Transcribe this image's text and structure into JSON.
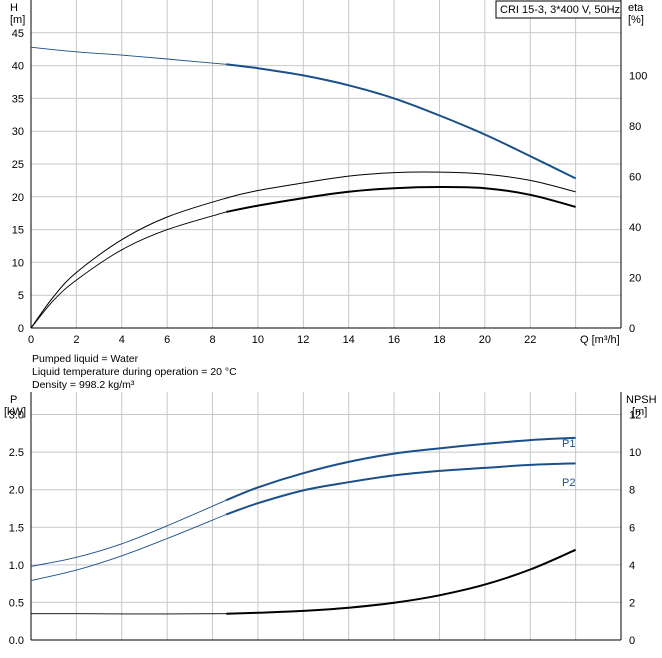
{
  "top_chart": {
    "pump_label": "CRI 15-3, 3*400 V, 50Hz",
    "y_left_title": "H",
    "y_left_unit": "[m]",
    "y_right_title": "eta",
    "y_right_unit": "[%]",
    "x_label": "Q [m³/h]"
  },
  "info": {
    "line1": "Pumped liquid = Water",
    "line2": "Liquid temperature during operation = 20 °C",
    "line3": "Density = 998.2 kg/m³"
  },
  "bottom_chart": {
    "y_left_title": "P",
    "y_left_unit": "[kW]",
    "y_right_title": "NPSH",
    "y_right_unit": "[m]",
    "p1_label": "P1",
    "p2_label": "P2"
  },
  "colors": {
    "blue": "#1a4f8a",
    "black": "#000000",
    "grid": "#c8c8c8"
  },
  "chart_data": [
    {
      "type": "line",
      "x_unit": "m³/h",
      "xlim": [
        0,
        26
      ],
      "x_ticks": [
        0,
        2,
        4,
        6,
        8,
        10,
        12,
        14,
        16,
        18,
        20,
        22
      ],
      "ylim_left": [
        0,
        50
      ],
      "y_left_ticks": [
        0,
        5,
        10,
        15,
        20,
        25,
        30,
        35,
        40,
        45
      ],
      "ylim_right": [
        0,
        130
      ],
      "y_right_ticks": [
        0,
        20,
        40,
        60,
        80,
        100
      ],
      "grid": true,
      "series": [
        {
          "name": "H",
          "axis": "left",
          "color": "#1a4f8a",
          "x": [
            0,
            2,
            4,
            6,
            8.6,
            10,
            12,
            14,
            16,
            18,
            20,
            22,
            24
          ],
          "y": [
            42.8,
            42.1,
            41.6,
            41.0,
            40.2,
            39.6,
            38.5,
            37.0,
            35.0,
            32.4,
            29.5,
            26.2,
            22.8
          ]
        },
        {
          "name": "eta",
          "axis": "right",
          "color": "#000000",
          "x": [
            0,
            1,
            2,
            4,
            6,
            8.6,
            10,
            12,
            14,
            16,
            18,
            20,
            22,
            24
          ],
          "y": [
            0,
            11,
            19,
            31,
            39,
            46,
            48.5,
            51.5,
            54,
            55.4,
            55.9,
            55.4,
            52.8,
            48
          ]
        },
        {
          "name": "eta-2",
          "axis": "right",
          "color": "#000000",
          "x": [
            0,
            1,
            2,
            4,
            6,
            8.6,
            10,
            12,
            14,
            16,
            18,
            20,
            22,
            24
          ],
          "y": [
            0,
            12.5,
            22,
            35,
            44,
            51.5,
            54.5,
            57.5,
            60.2,
            61.6,
            61.8,
            61.0,
            58.5,
            54
          ]
        }
      ]
    },
    {
      "type": "line",
      "x_unit": "m³/h",
      "xlim": [
        0,
        26
      ],
      "ylim_left": [
        0,
        3.3
      ],
      "y_left_ticks": [
        0.0,
        0.5,
        1.0,
        1.5,
        2.0,
        2.5,
        3.0
      ],
      "ylim_right": [
        0,
        13.2
      ],
      "y_right_ticks": [
        0,
        2,
        4,
        6,
        8,
        10,
        12
      ],
      "grid": true,
      "series": [
        {
          "name": "P1",
          "axis": "left",
          "color": "#1a4f8a",
          "x": [
            0,
            2,
            4,
            6,
            8.6,
            10,
            12,
            14,
            16,
            18,
            20,
            22,
            24
          ],
          "y": [
            0.98,
            1.1,
            1.28,
            1.52,
            1.86,
            2.03,
            2.22,
            2.37,
            2.48,
            2.55,
            2.61,
            2.66,
            2.69
          ]
        },
        {
          "name": "P2",
          "axis": "left",
          "color": "#1a4f8a",
          "x": [
            0,
            2,
            4,
            6,
            8.6,
            10,
            12,
            14,
            16,
            18,
            20,
            22,
            24
          ],
          "y": [
            0.79,
            0.93,
            1.12,
            1.35,
            1.67,
            1.82,
            1.99,
            2.1,
            2.19,
            2.25,
            2.29,
            2.33,
            2.35
          ]
        },
        {
          "name": "NPSH",
          "axis": "right",
          "color": "#000000",
          "x": [
            0,
            2,
            4,
            6,
            8.6,
            10,
            12,
            14,
            16,
            18,
            20,
            22,
            24
          ],
          "y": [
            1.4,
            1.4,
            1.39,
            1.39,
            1.4,
            1.45,
            1.55,
            1.72,
            1.98,
            2.38,
            2.95,
            3.75,
            4.8
          ]
        }
      ]
    }
  ]
}
